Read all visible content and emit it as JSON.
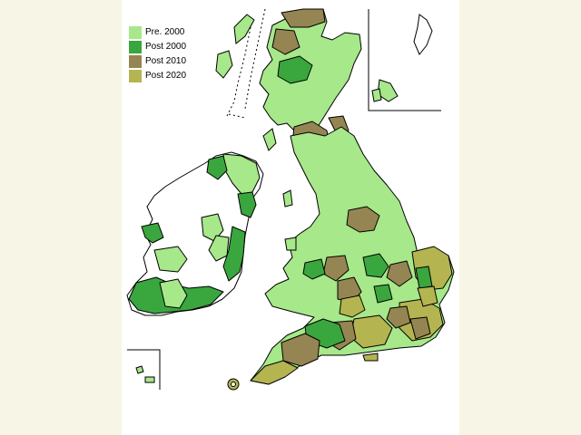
{
  "colors": {
    "pre_2000": "#a6e88a",
    "post_2000": "#3aa63e",
    "post_2010": "#958552",
    "post_2020": "#b4b550",
    "unshaded": "#ffffff",
    "border": "#000000",
    "background": "#f7f6e6"
  },
  "legend": {
    "items": [
      {
        "label": "Pre.  2000",
        "color": "#a6e88a"
      },
      {
        "label": "Post 2000",
        "color": "#3aa63e"
      },
      {
        "label": "Post 2010",
        "color": "#958552"
      },
      {
        "label": "Post 2020",
        "color": "#b4b550"
      }
    ]
  }
}
